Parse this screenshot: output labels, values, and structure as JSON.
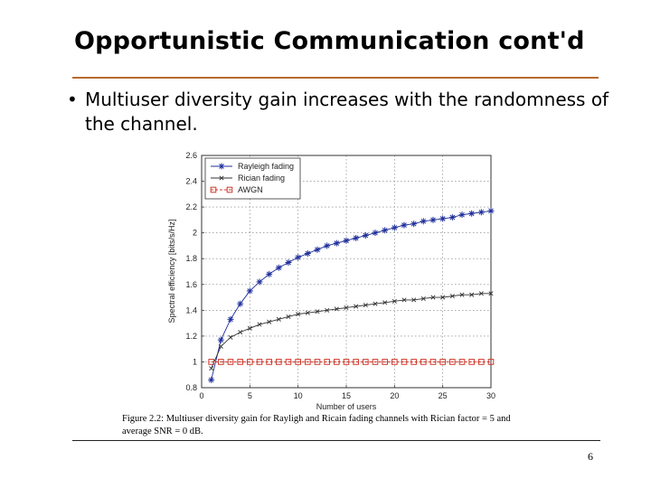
{
  "slide": {
    "title": "Opportunistic Communication cont'd",
    "bullet": "Multiuser diversity gain increases with the randomness of the channel.",
    "caption": "Figure 2.2: Multiuser diversity gain for Rayligh and Ricain fading channels with Rician factor = 5 and average SNR = 0 dB.",
    "page_number": "6",
    "accent_color": "#b86a2e"
  },
  "chart_data": {
    "type": "line",
    "xlabel": "Number of users",
    "ylabel": "Spectral efficiency [bits/s/Hz]",
    "xlim": [
      0,
      30
    ],
    "ylim": [
      0.8,
      2.6
    ],
    "xticks": [
      0,
      5,
      10,
      15,
      20,
      25,
      30
    ],
    "yticks": [
      0.8,
      1,
      1.2,
      1.4,
      1.6,
      1.8,
      2,
      2.2,
      2.4,
      2.6
    ],
    "ytick_labels": [
      "0.8",
      "1",
      "1.2",
      "1.4",
      "1.6",
      "1.8",
      "2",
      "2.2",
      "2.4",
      "2.6"
    ],
    "grid": true,
    "legend_position": "top-left",
    "x": [
      1,
      2,
      3,
      4,
      5,
      6,
      7,
      8,
      9,
      10,
      11,
      12,
      13,
      14,
      15,
      16,
      17,
      18,
      19,
      20,
      21,
      22,
      23,
      24,
      25,
      26,
      27,
      28,
      29,
      30
    ],
    "series": [
      {
        "name": "Rayleigh fading",
        "color": "#1f2f9a",
        "marker": "star",
        "values": [
          0.86,
          1.17,
          1.33,
          1.45,
          1.55,
          1.62,
          1.68,
          1.73,
          1.77,
          1.81,
          1.84,
          1.87,
          1.9,
          1.92,
          1.94,
          1.96,
          1.98,
          2.0,
          2.02,
          2.04,
          2.06,
          2.07,
          2.09,
          2.1,
          2.11,
          2.12,
          2.14,
          2.15,
          2.16,
          2.17
        ]
      },
      {
        "name": "Rician fading",
        "color": "#333333",
        "marker": "x",
        "values": [
          0.95,
          1.12,
          1.19,
          1.23,
          1.26,
          1.29,
          1.31,
          1.33,
          1.35,
          1.37,
          1.38,
          1.39,
          1.4,
          1.41,
          1.42,
          1.43,
          1.44,
          1.45,
          1.46,
          1.47,
          1.48,
          1.48,
          1.49,
          1.5,
          1.5,
          1.51,
          1.52,
          1.52,
          1.53,
          1.53
        ]
      },
      {
        "name": "AWGN",
        "color": "#d0372a",
        "marker": "square",
        "values": [
          1,
          1,
          1,
          1,
          1,
          1,
          1,
          1,
          1,
          1,
          1,
          1,
          1,
          1,
          1,
          1,
          1,
          1,
          1,
          1,
          1,
          1,
          1,
          1,
          1,
          1,
          1,
          1,
          1,
          1
        ]
      }
    ]
  }
}
